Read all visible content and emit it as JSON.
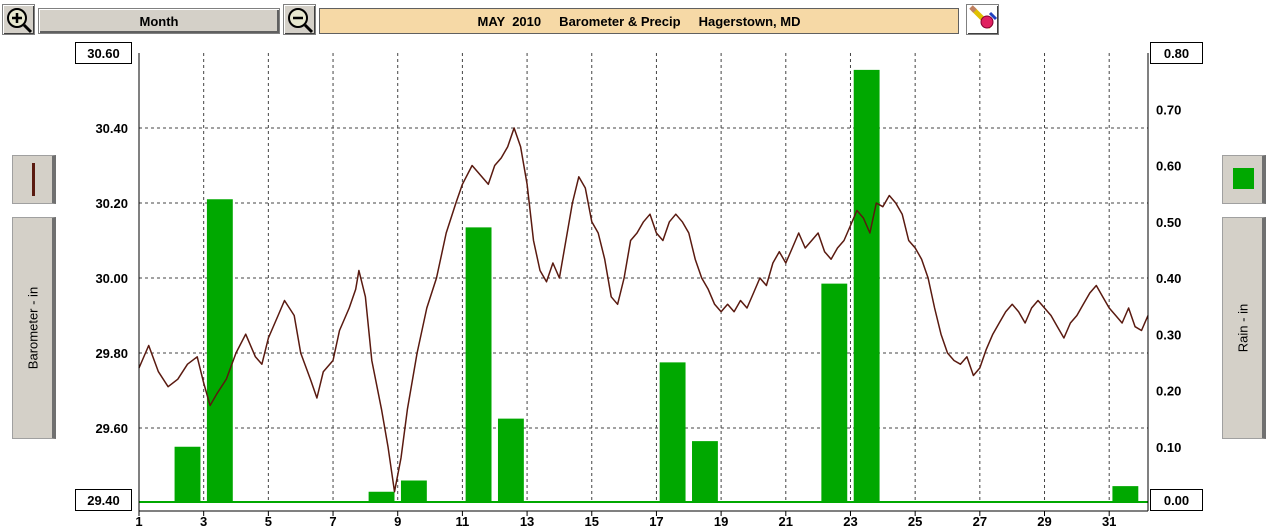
{
  "toolbar": {
    "zoom_in_icon": "zoom-in-magnifier",
    "period_label": "Month",
    "zoom_out_icon": "zoom-out-magnifier",
    "title": "MAY  2010     Barometer & Precip     Hagerstown, MD",
    "tool_icon": "eraser-pencil-icon"
  },
  "left_panel": {
    "series_swatch_color": "#5a1a10",
    "axis_label": "Barometer - in"
  },
  "right_panel": {
    "series_swatch_color": "#00a800",
    "axis_label": "Rain - in"
  },
  "chart_data": {
    "type": "bar+line",
    "x_ticks": [
      "1",
      "3",
      "5",
      "7",
      "9",
      "11",
      "13",
      "15",
      "17",
      "19",
      "21",
      "23",
      "25",
      "27",
      "29",
      "31"
    ],
    "xlim": [
      1,
      32.2
    ],
    "grid": true,
    "left_axis": {
      "label": "Barometer - in",
      "ticks": [
        "30.60",
        "30.40",
        "30.20",
        "30.00",
        "29.80",
        "29.60",
        "29.40"
      ],
      "range": [
        29.4,
        30.6
      ],
      "top_value": "30.60",
      "bottom_value": "29.40"
    },
    "right_axis": {
      "label": "Rain - in",
      "ticks": [
        "0.80",
        "0.70",
        "0.60",
        "0.50",
        "0.40",
        "0.30",
        "0.20",
        "0.10",
        "0.00"
      ],
      "range": [
        0.0,
        0.8
      ],
      "top_value": "0.80",
      "bottom_value": "0.00"
    },
    "rain": {
      "name": "Rain - in",
      "color": "#00a800",
      "days": [
        1,
        2,
        3,
        4,
        5,
        6,
        7,
        8,
        9,
        10,
        11,
        12,
        13,
        14,
        15,
        16,
        17,
        18,
        19,
        20,
        21,
        22,
        23,
        24,
        25,
        26,
        27,
        28,
        29,
        30,
        31
      ],
      "values": [
        0,
        0.1,
        0.54,
        0,
        0,
        0,
        0,
        0.02,
        0.04,
        0,
        0.49,
        0.15,
        0,
        0,
        0,
        0,
        0.25,
        0.11,
        0,
        0,
        0,
        0.39,
        0.77,
        0,
        0,
        0,
        0,
        0,
        0,
        0,
        0.03
      ]
    },
    "barometer": {
      "name": "Barometer - in",
      "color": "#5a1a10",
      "points": [
        [
          1.0,
          29.76
        ],
        [
          1.3,
          29.82
        ],
        [
          1.6,
          29.75
        ],
        [
          1.9,
          29.71
        ],
        [
          2.2,
          29.73
        ],
        [
          2.5,
          29.77
        ],
        [
          2.8,
          29.79
        ],
        [
          3.0,
          29.72
        ],
        [
          3.2,
          29.66
        ],
        [
          3.4,
          29.69
        ],
        [
          3.7,
          29.73
        ],
        [
          4.0,
          29.8
        ],
        [
          4.3,
          29.85
        ],
        [
          4.6,
          29.79
        ],
        [
          4.8,
          29.77
        ],
        [
          5.0,
          29.84
        ],
        [
          5.3,
          29.9
        ],
        [
          5.5,
          29.94
        ],
        [
          5.8,
          29.9
        ],
        [
          6.0,
          29.8
        ],
        [
          6.3,
          29.73
        ],
        [
          6.5,
          29.68
        ],
        [
          6.7,
          29.75
        ],
        [
          7.0,
          29.78
        ],
        [
          7.2,
          29.86
        ],
        [
          7.5,
          29.92
        ],
        [
          7.7,
          29.97
        ],
        [
          7.8,
          30.02
        ],
        [
          8.0,
          29.95
        ],
        [
          8.2,
          29.78
        ],
        [
          8.5,
          29.65
        ],
        [
          8.7,
          29.55
        ],
        [
          8.9,
          29.43
        ],
        [
          9.1,
          29.52
        ],
        [
          9.3,
          29.65
        ],
        [
          9.6,
          29.8
        ],
        [
          9.9,
          29.92
        ],
        [
          10.2,
          30.0
        ],
        [
          10.5,
          30.12
        ],
        [
          10.8,
          30.2
        ],
        [
          11.0,
          30.25
        ],
        [
          11.3,
          30.3
        ],
        [
          11.5,
          30.28
        ],
        [
          11.8,
          30.25
        ],
        [
          12.0,
          30.3
        ],
        [
          12.2,
          30.32
        ],
        [
          12.4,
          30.35
        ],
        [
          12.6,
          30.4
        ],
        [
          12.8,
          30.35
        ],
        [
          13.0,
          30.25
        ],
        [
          13.2,
          30.1
        ],
        [
          13.4,
          30.02
        ],
        [
          13.6,
          29.99
        ],
        [
          13.8,
          30.04
        ],
        [
          14.0,
          30.0
        ],
        [
          14.2,
          30.1
        ],
        [
          14.4,
          30.2
        ],
        [
          14.6,
          30.27
        ],
        [
          14.8,
          30.24
        ],
        [
          15.0,
          30.15
        ],
        [
          15.2,
          30.12
        ],
        [
          15.4,
          30.05
        ],
        [
          15.6,
          29.95
        ],
        [
          15.8,
          29.93
        ],
        [
          16.0,
          30.0
        ],
        [
          16.2,
          30.1
        ],
        [
          16.4,
          30.12
        ],
        [
          16.6,
          30.15
        ],
        [
          16.8,
          30.17
        ],
        [
          17.0,
          30.12
        ],
        [
          17.2,
          30.1
        ],
        [
          17.4,
          30.15
        ],
        [
          17.6,
          30.17
        ],
        [
          17.8,
          30.15
        ],
        [
          18.0,
          30.12
        ],
        [
          18.2,
          30.05
        ],
        [
          18.4,
          30.0
        ],
        [
          18.6,
          29.97
        ],
        [
          18.8,
          29.93
        ],
        [
          19.0,
          29.91
        ],
        [
          19.2,
          29.93
        ],
        [
          19.4,
          29.91
        ],
        [
          19.6,
          29.94
        ],
        [
          19.8,
          29.92
        ],
        [
          20.0,
          29.96
        ],
        [
          20.2,
          30.0
        ],
        [
          20.4,
          29.98
        ],
        [
          20.6,
          30.04
        ],
        [
          20.8,
          30.07
        ],
        [
          21.0,
          30.04
        ],
        [
          21.2,
          30.08
        ],
        [
          21.4,
          30.12
        ],
        [
          21.6,
          30.08
        ],
        [
          21.8,
          30.1
        ],
        [
          22.0,
          30.12
        ],
        [
          22.2,
          30.07
        ],
        [
          22.4,
          30.05
        ],
        [
          22.6,
          30.08
        ],
        [
          22.8,
          30.1
        ],
        [
          23.0,
          30.14
        ],
        [
          23.2,
          30.18
        ],
        [
          23.4,
          30.16
        ],
        [
          23.6,
          30.12
        ],
        [
          23.8,
          30.2
        ],
        [
          24.0,
          30.19
        ],
        [
          24.2,
          30.22
        ],
        [
          24.4,
          30.2
        ],
        [
          24.6,
          30.17
        ],
        [
          24.8,
          30.1
        ],
        [
          25.0,
          30.08
        ],
        [
          25.2,
          30.05
        ],
        [
          25.4,
          30.0
        ],
        [
          25.6,
          29.92
        ],
        [
          25.8,
          29.85
        ],
        [
          26.0,
          29.8
        ],
        [
          26.2,
          29.78
        ],
        [
          26.4,
          29.77
        ],
        [
          26.6,
          29.79
        ],
        [
          26.8,
          29.74
        ],
        [
          27.0,
          29.76
        ],
        [
          27.2,
          29.81
        ],
        [
          27.4,
          29.85
        ],
        [
          27.6,
          29.88
        ],
        [
          27.8,
          29.91
        ],
        [
          28.0,
          29.93
        ],
        [
          28.2,
          29.91
        ],
        [
          28.4,
          29.88
        ],
        [
          28.6,
          29.92
        ],
        [
          28.8,
          29.94
        ],
        [
          29.0,
          29.92
        ],
        [
          29.2,
          29.9
        ],
        [
          29.4,
          29.87
        ],
        [
          29.6,
          29.84
        ],
        [
          29.8,
          29.88
        ],
        [
          30.0,
          29.9
        ],
        [
          30.2,
          29.93
        ],
        [
          30.4,
          29.96
        ],
        [
          30.6,
          29.98
        ],
        [
          30.8,
          29.95
        ],
        [
          31.0,
          29.92
        ],
        [
          31.2,
          29.9
        ],
        [
          31.4,
          29.88
        ],
        [
          31.6,
          29.92
        ],
        [
          31.8,
          29.87
        ],
        [
          32.0,
          29.86
        ],
        [
          32.2,
          29.9
        ]
      ]
    }
  }
}
